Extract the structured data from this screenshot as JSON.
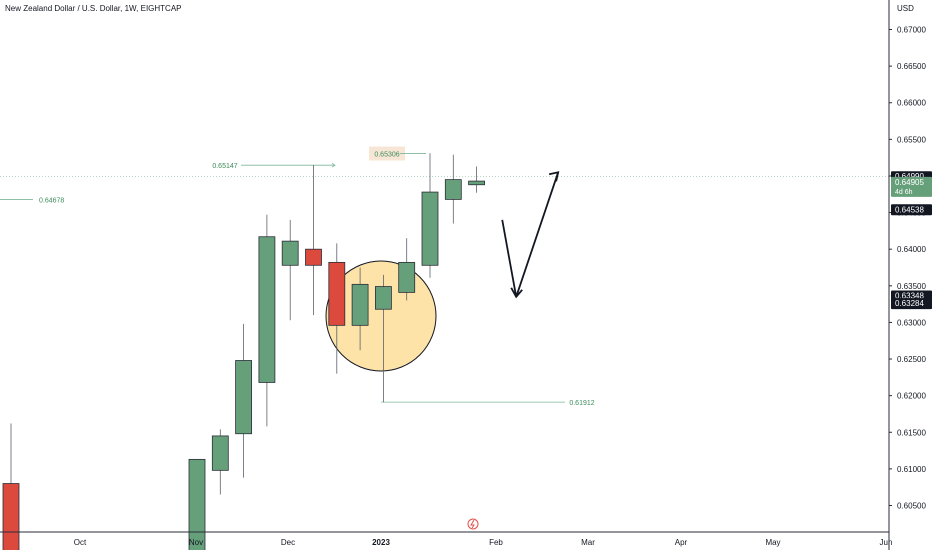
{
  "header": {
    "title": "New Zealand Dollar / U.S. Dollar, 1W, EIGHTCAP",
    "currency": "USD"
  },
  "colors": {
    "bull": "#66a07a",
    "bear": "#dc4a3d",
    "wick": "#5d606b",
    "marker_line": "#7fb89a",
    "marker_text": "#3c8c5a",
    "circle_fill": "#fde3a7",
    "axis_text": "#131722",
    "price_label_dark": "#131722",
    "price_label_green": "#66a07a"
  },
  "chart_data": {
    "type": "candlestick",
    "yrange": [
      0.6,
      0.67
    ],
    "ytick_labels": [
      "0.67000",
      "0.66500",
      "0.66000",
      "0.65500",
      "0.65000",
      "0.64500",
      "0.64000",
      "0.63500",
      "0.63000",
      "0.62500",
      "0.62000",
      "0.61500",
      "0.61000",
      "0.60500"
    ],
    "xtick_labels": [
      "Oct",
      "Nov",
      "Dec",
      "2023",
      "Feb",
      "Mar",
      "Apr",
      "May",
      "Jun"
    ],
    "candles": [
      {
        "open": 0.608,
        "high": 0.6162,
        "low": 0.5985,
        "close": 0.5985
      },
      {
        "open": 0.5985,
        "high": 0.6113,
        "low": 0.5985,
        "close": 0.6113
      },
      {
        "open": 0.6098,
        "high": 0.6154,
        "low": 0.6065,
        "close": 0.6145
      },
      {
        "open": 0.6148,
        "high": 0.6298,
        "low": 0.6088,
        "close": 0.6248
      },
      {
        "open": 0.6218,
        "high": 0.6447,
        "low": 0.6158,
        "close": 0.6417
      },
      {
        "open": 0.6378,
        "high": 0.644,
        "low": 0.6303,
        "close": 0.6411
      },
      {
        "open": 0.64,
        "high": 0.6515,
        "low": 0.631,
        "close": 0.6378
      },
      {
        "open": 0.6382,
        "high": 0.6408,
        "low": 0.623,
        "close": 0.6296
      },
      {
        "open": 0.6296,
        "high": 0.6375,
        "low": 0.6262,
        "close": 0.6352
      },
      {
        "open": 0.6318,
        "high": 0.6365,
        "low": 0.6191,
        "close": 0.6349
      },
      {
        "open": 0.6341,
        "high": 0.6415,
        "low": 0.633,
        "close": 0.6382
      },
      {
        "open": 0.6378,
        "high": 0.6531,
        "low": 0.6361,
        "close": 0.6478
      },
      {
        "open": 0.6468,
        "high": 0.6529,
        "low": 0.6435,
        "close": 0.6495
      },
      {
        "open": 0.6488,
        "high": 0.6513,
        "low": 0.6477,
        "close": 0.6493
      }
    ],
    "markers": [
      {
        "label": "0.64678",
        "value": 0.64678
      },
      {
        "label": "0.65147",
        "value": 0.65147
      },
      {
        "label": "0.65306",
        "value": 0.65306
      },
      {
        "label": "0.61912",
        "value": 0.61912
      }
    ],
    "price_labels": [
      {
        "text": "0.64990",
        "value": 0.6499,
        "style": "dark"
      },
      {
        "text": "0.64905",
        "value": 0.64905,
        "style": "green",
        "sub": "4d 6h"
      },
      {
        "text": "0.64538",
        "value": 0.64538,
        "style": "dark"
      },
      {
        "text": "0.63348",
        "value": 0.63348,
        "style": "dark"
      },
      {
        "text": "0.63284",
        "value": 0.63284,
        "style": "dark"
      }
    ],
    "projection": [
      {
        "time_index": 14.1,
        "value": 0.644
      },
      {
        "time_index": 14.7,
        "value": 0.6335
      },
      {
        "time_index": 16.5,
        "value": 0.6505
      }
    ],
    "grid": false
  }
}
